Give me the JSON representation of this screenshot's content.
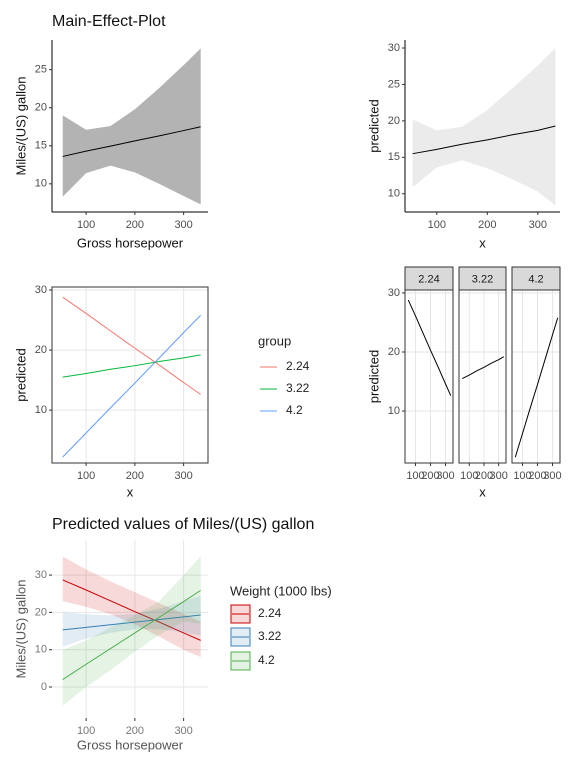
{
  "chart_data": [
    {
      "type": "line",
      "title": "Main-Effect-Plot",
      "xlabel": "Gross horsepower",
      "ylabel": "Miles/(US) gallon",
      "x": [
        52,
        100,
        150,
        200,
        250,
        300,
        335
      ],
      "values": [
        13.6,
        14.3,
        14.95,
        15.65,
        16.3,
        17.0,
        17.5
      ],
      "lower": [
        8.3,
        11.4,
        12.4,
        11.5,
        10.0,
        8.4,
        7.3
      ],
      "upper": [
        19.0,
        17.1,
        17.6,
        19.8,
        22.6,
        25.6,
        27.8
      ],
      "color": "#000000",
      "ribbon_color": "#b3b3b3",
      "xlim": [
        30,
        350
      ],
      "ylim": [
        6.3,
        28.9
      ],
      "xticks": [
        100,
        200,
        300
      ],
      "yticks": [
        10,
        15,
        20,
        25
      ],
      "grid": false,
      "axis_lines": true
    },
    {
      "type": "line",
      "xlabel": "x",
      "ylabel": "predicted",
      "x": [
        52,
        100,
        150,
        200,
        250,
        300,
        335
      ],
      "values": [
        15.5,
        16.1,
        16.8,
        17.4,
        18.1,
        18.7,
        19.3
      ],
      "lower": [
        10.9,
        13.6,
        14.6,
        13.5,
        12.0,
        10.3,
        8.4
      ],
      "upper": [
        20.2,
        18.7,
        19.2,
        21.5,
        24.5,
        27.6,
        30.0
      ],
      "color": "#000000",
      "ribbon_color": "#ebebeb",
      "xlim": [
        37,
        344
      ],
      "ylim": [
        7.5,
        31.1
      ],
      "xticks": [
        100,
        200,
        300
      ],
      "yticks": [
        10,
        15,
        20,
        25,
        30
      ],
      "grid": false,
      "axis_lines": true
    },
    {
      "type": "line",
      "xlabel": "x",
      "ylabel": "predicted",
      "legend_title": "group",
      "x": [
        52,
        100,
        150,
        200,
        250,
        300,
        335
      ],
      "series": [
        {
          "name": "2.24",
          "color": "#F8766D",
          "values": [
            28.8,
            26.1,
            23.2,
            20.3,
            17.5,
            14.6,
            12.6
          ]
        },
        {
          "name": "3.22",
          "color": "#00BA38",
          "values": [
            15.5,
            16.1,
            16.8,
            17.4,
            18.1,
            18.7,
            19.2
          ]
        },
        {
          "name": "4.2",
          "color": "#619CFF",
          "values": [
            2.2,
            6.2,
            10.4,
            14.5,
            18.7,
            22.9,
            25.8
          ]
        }
      ],
      "xlim": [
        30,
        350
      ],
      "ylim": [
        1.2,
        30.5
      ],
      "xticks": [
        100,
        200,
        300
      ],
      "yticks": [
        10,
        20,
        30
      ],
      "grid": true,
      "panel_border": true
    },
    {
      "type": "line",
      "xlabel": "x",
      "ylabel": "predicted",
      "facet": true,
      "x": [
        52,
        100,
        150,
        200,
        250,
        300,
        335
      ],
      "series": [
        {
          "name": "2.24",
          "color": "#000000",
          "values": [
            28.8,
            26.1,
            23.2,
            20.3,
            17.5,
            14.6,
            12.6
          ]
        },
        {
          "name": "3.22",
          "color": "#000000",
          "values": [
            15.5,
            16.1,
            16.8,
            17.4,
            18.1,
            18.7,
            19.2
          ]
        },
        {
          "name": "4.2",
          "color": "#000000",
          "values": [
            2.2,
            6.2,
            10.4,
            14.5,
            18.7,
            22.9,
            25.8
          ]
        }
      ],
      "xlim": [
        30,
        350
      ],
      "ylim": [
        1.2,
        30.5
      ],
      "xticks": [
        100,
        200,
        300
      ],
      "yticks": [
        10,
        20,
        30
      ],
      "grid": true,
      "panel_border": true
    },
    {
      "type": "line",
      "title": "Predicted values of Miles/(US) gallon",
      "xlabel": "Gross horsepower",
      "ylabel": "Miles/(US) gallon",
      "legend_title": "Weight (1000 lbs)",
      "x": [
        52,
        100,
        150,
        200,
        250,
        300,
        335
      ],
      "series": [
        {
          "name": "2.24",
          "color": "#CC0000",
          "values": [
            28.7,
            26.0,
            23.1,
            20.2,
            17.4,
            14.5,
            12.5
          ],
          "lower": [
            23.0,
            21.5,
            19.5,
            16.8,
            13.5,
            10.0,
            8.0
          ],
          "upper": [
            35.0,
            31.5,
            28.3,
            25.4,
            22.5,
            19.6,
            17.5
          ]
        },
        {
          "name": "3.22",
          "color": "#377EB8",
          "values": [
            15.3,
            16.0,
            16.7,
            17.4,
            18.1,
            18.8,
            19.3
          ],
          "lower": [
            10.8,
            13.0,
            14.5,
            15.5,
            15.5,
            14.6,
            13.8
          ],
          "upper": [
            20.0,
            19.5,
            19.2,
            19.6,
            21.0,
            23.0,
            24.5
          ]
        },
        {
          "name": "4.2",
          "color": "#4DAF4A",
          "values": [
            2.0,
            6.1,
            10.3,
            14.5,
            18.7,
            22.9,
            25.9
          ],
          "lower": [
            -5.0,
            0.0,
            4.5,
            9.5,
            14.0,
            17.5,
            17.0
          ],
          "upper": [
            10.0,
            12.5,
            16.0,
            19.2,
            23.0,
            30.0,
            35.0
          ]
        }
      ],
      "xlim": [
        30,
        350
      ],
      "ylim": [
        -8.3,
        39.4
      ],
      "xticks": [
        100,
        200,
        300
      ],
      "yticks": [
        0,
        10,
        20,
        30
      ],
      "grid": true
    }
  ]
}
